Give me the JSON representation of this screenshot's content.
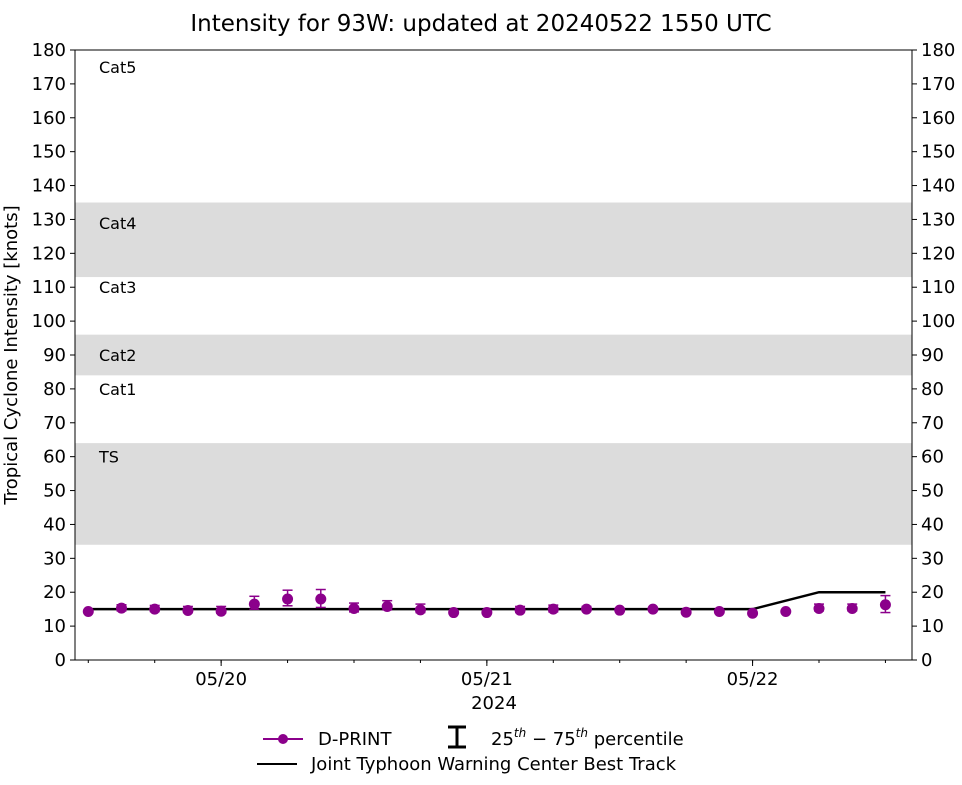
{
  "chart_data": {
    "type": "scatter",
    "title": "Intensity for 93W: updated at 20240522 1550 UTC",
    "ylabel": "Tropical Cyclone Intensity [knots]",
    "xlabel": "2024",
    "ylim": [
      0,
      180
    ],
    "yticks": [
      0,
      10,
      20,
      30,
      40,
      50,
      60,
      70,
      80,
      90,
      100,
      110,
      120,
      130,
      140,
      150,
      160,
      170,
      180
    ],
    "x_unit": "hours since 05/19 12 UTC",
    "xlim": [
      -1.2,
      74.4
    ],
    "xticks": [
      {
        "hours": 12,
        "label": "05/20"
      },
      {
        "hours": 36,
        "label": "05/21"
      },
      {
        "hours": 60,
        "label": "05/22"
      }
    ],
    "minor_xtick_step_hours": 6,
    "categories": [
      {
        "label": "TS",
        "range": [
          34,
          64
        ],
        "shaded": true,
        "label_at": 60
      },
      {
        "label": "Cat1",
        "range": [
          64,
          84
        ],
        "shaded": false,
        "label_at": 80
      },
      {
        "label": "Cat2",
        "range": [
          84,
          96
        ],
        "shaded": true,
        "label_at": 90
      },
      {
        "label": "Cat3",
        "range": [
          96,
          113
        ],
        "shaded": false,
        "label_at": 110
      },
      {
        "label": "Cat4",
        "range": [
          113,
          135
        ],
        "shaded": true,
        "label_at": 129
      },
      {
        "label": "Cat5",
        "range": [
          135,
          180
        ],
        "shaded": false,
        "label_at": 175
      }
    ],
    "series": [
      {
        "name": "D-PRINT",
        "color": "#8b008b",
        "x": [
          0,
          3,
          6,
          9,
          12,
          15,
          18,
          21,
          24,
          27,
          30,
          33,
          36,
          39,
          42,
          45,
          48,
          51,
          54,
          57,
          60,
          63,
          66,
          69,
          72
        ],
        "y": [
          14.3,
          15.3,
          15.0,
          14.6,
          14.4,
          16.5,
          18.0,
          18.0,
          15.2,
          15.8,
          14.8,
          14.0,
          14.0,
          14.7,
          15.0,
          15.0,
          14.7,
          15.0,
          14.1,
          14.3,
          13.8,
          14.3,
          15.2,
          15.2,
          16.3
        ],
        "p25": [
          14.3,
          14.5,
          14.3,
          14.0,
          13.8,
          15.0,
          16.0,
          15.5,
          14.2,
          14.8,
          14.0,
          14.0,
          14.0,
          14.0,
          14.2,
          14.5,
          14.7,
          15.0,
          14.1,
          14.3,
          13.8,
          14.3,
          14.5,
          14.5,
          14.0
        ],
        "p75": [
          14.3,
          16.3,
          16.1,
          15.8,
          15.8,
          18.8,
          20.6,
          20.8,
          16.8,
          17.5,
          16.5,
          14.0,
          14.0,
          15.8,
          16.2,
          15.8,
          14.7,
          15.0,
          14.1,
          14.3,
          13.8,
          14.3,
          16.5,
          16.5,
          19.0
        ]
      },
      {
        "name": "Joint Typhoon Warning Center Best Track",
        "color": "#000000",
        "x": [
          0,
          60,
          66,
          72
        ],
        "y": [
          15,
          15,
          20,
          20
        ]
      }
    ],
    "legend": {
      "placement": "bottom",
      "dprint": "D-PRINT",
      "percentile_base": "25",
      "percentile_sup1": "th",
      "percentile_mid": " − 75",
      "percentile_sup2": "th",
      "percentile_tail": " percentile",
      "jtwc": "Joint Typhoon Warning Center Best Track"
    },
    "band_color": "#dcdcdc"
  }
}
